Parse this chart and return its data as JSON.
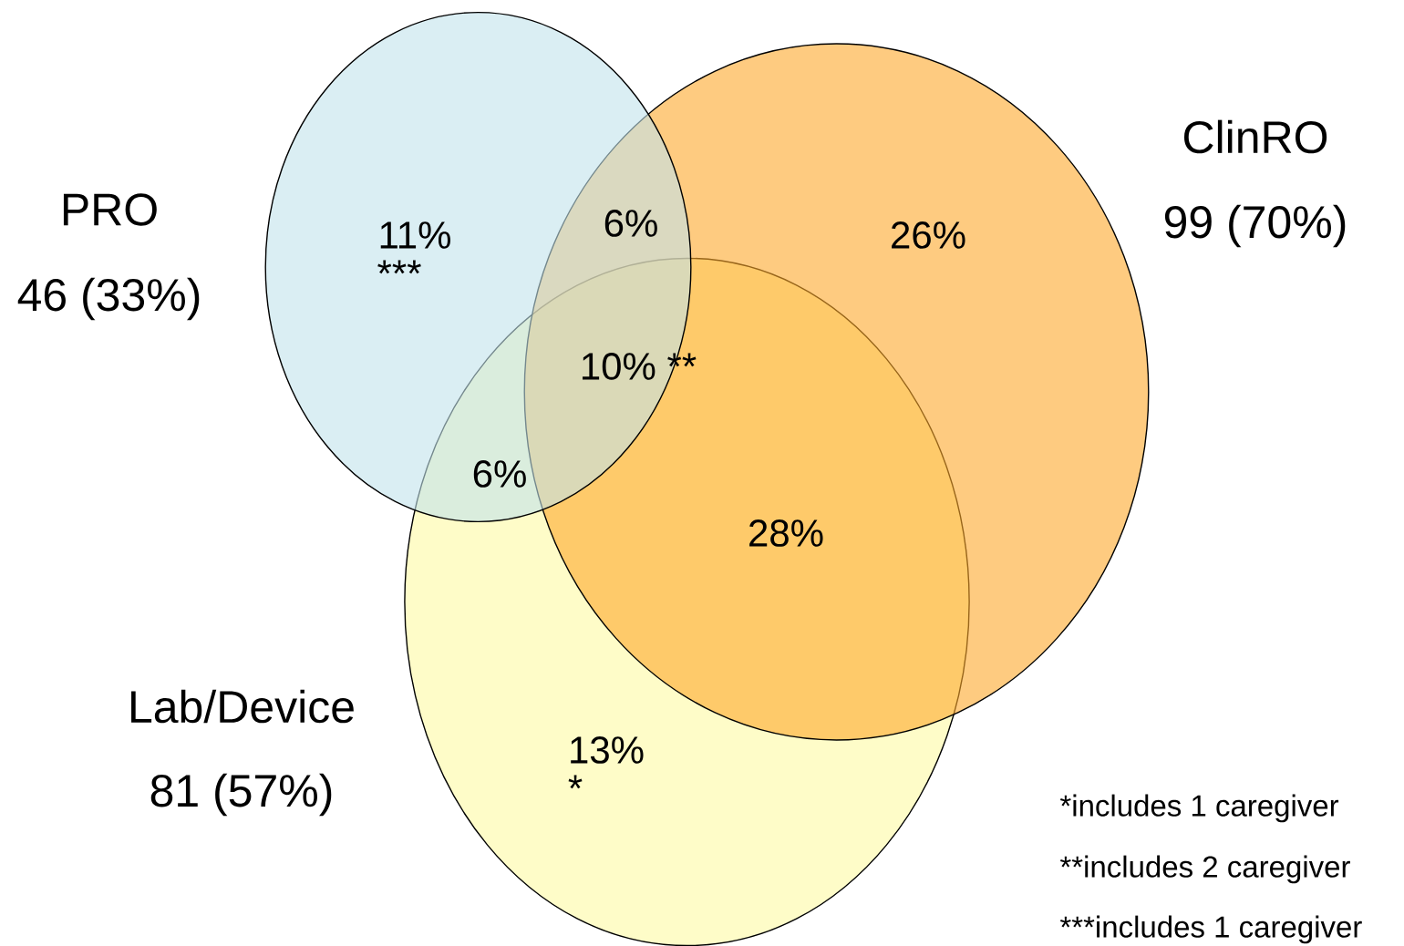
{
  "chart_data": {
    "type": "other",
    "categories": [
      "PRO",
      "ClinRO",
      "Lab/Device"
    ],
    "values": [
      46,
      99,
      81
    ],
    "value_labels": [
      "46 (33%)",
      "99 (70%)",
      "81 (57%)"
    ],
    "colors": [
      "#c1e3eb",
      "#fda82b",
      "#fdfaa3"
    ],
    "annotations": [
      "11%",
      "***",
      "6%",
      "26%",
      "10% **",
      "6%",
      "28%",
      "13%",
      "*",
      "*includes 1 caregiver",
      "**includes 2 caregiver",
      "***includes 1 caregiver"
    ]
  }
}
